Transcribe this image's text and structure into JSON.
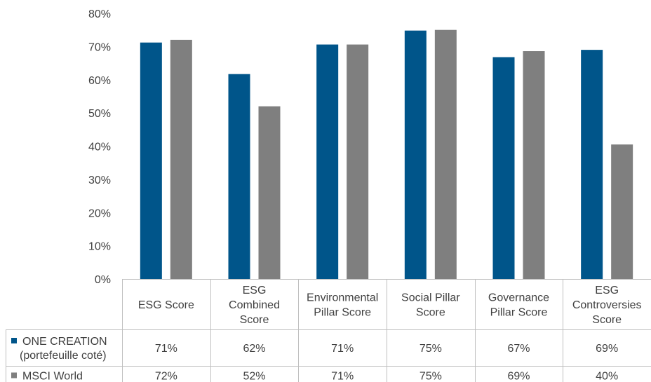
{
  "chart_data": {
    "type": "bar",
    "title": "",
    "xlabel": "",
    "ylabel": "",
    "ylim": [
      0,
      80
    ],
    "ytick_step": 10,
    "ytick_suffix": "%",
    "grid": false,
    "categories": [
      [
        "ESG Score"
      ],
      [
        "ESG",
        "Combined",
        "Score"
      ],
      [
        "Environmental",
        "Pillar Score"
      ],
      [
        "Social Pillar",
        "Score"
      ],
      [
        "Governance",
        "Pillar Score"
      ],
      [
        "ESG",
        "Controversies",
        "Score"
      ]
    ],
    "series": [
      {
        "name_lines": [
          "ONE CREATION",
          "(portefeuille coté)"
        ],
        "color": "#00558a",
        "values": [
          71.2,
          61.7,
          70.6,
          74.8,
          66.8,
          69.0
        ],
        "labels": [
          "71%",
          "62%",
          "71%",
          "75%",
          "67%",
          "69%"
        ]
      },
      {
        "name_lines": [
          "MSCI World"
        ],
        "color": "#7f7f7f",
        "values": [
          72.0,
          52.0,
          70.6,
          75.0,
          68.6,
          40.5
        ],
        "labels": [
          "72%",
          "52%",
          "71%",
          "75%",
          "69%",
          "40%"
        ]
      }
    ],
    "legend": "data-table-rows"
  }
}
